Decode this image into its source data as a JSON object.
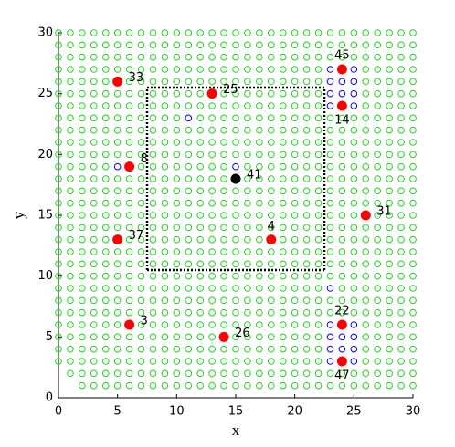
{
  "chart_data": {
    "type": "scatter",
    "xlabel": "x",
    "ylabel": "y",
    "xlim": [
      0,
      30
    ],
    "ylim": [
      0,
      30
    ],
    "xticks": [
      0,
      5,
      10,
      15,
      20,
      25,
      30
    ],
    "yticks": [
      0,
      5,
      10,
      15,
      20,
      25,
      30
    ],
    "grid": {
      "color": "#1ed41e",
      "rows": [
        {
          "y": 30,
          "x": [
            0,
            1,
            2,
            3,
            4,
            5,
            6,
            7,
            8,
            9,
            10,
            11,
            12,
            13,
            14,
            15,
            16,
            17,
            18,
            19,
            20,
            21,
            22,
            23,
            24,
            25,
            26,
            27,
            28,
            29,
            30
          ]
        },
        {
          "y": 29,
          "x": [
            0,
            1,
            2,
            3,
            4,
            5,
            6,
            7,
            8,
            9,
            10,
            11,
            12,
            13,
            14,
            15,
            16,
            17,
            18,
            19,
            20,
            21,
            22,
            23,
            24,
            25,
            26,
            27,
            28,
            29,
            30
          ]
        },
        {
          "y": 28,
          "x": [
            0,
            1,
            2,
            3,
            4,
            5,
            6,
            7,
            8,
            9,
            10,
            11,
            12,
            13,
            14,
            15,
            16,
            17,
            18,
            19,
            20,
            21,
            22,
            23,
            24,
            25,
            26,
            27,
            28,
            29,
            30
          ]
        },
        {
          "y": 27,
          "x": [
            0,
            1,
            2,
            3,
            4,
            5,
            6,
            7,
            8,
            9,
            10,
            11,
            12,
            13,
            14,
            15,
            16,
            17,
            18,
            19,
            20,
            21,
            22,
            26,
            27,
            28,
            29,
            30
          ]
        },
        {
          "y": 26,
          "x": [
            0,
            1,
            2,
            3,
            4,
            6,
            7,
            8,
            9,
            10,
            11,
            12,
            13,
            14,
            15,
            16,
            17,
            18,
            19,
            20,
            21,
            22,
            26,
            27,
            28,
            29,
            30
          ]
        },
        {
          "y": 25,
          "x": [
            0,
            1,
            2,
            3,
            4,
            5,
            6,
            7,
            8,
            9,
            10,
            11,
            12,
            14,
            15,
            16,
            17,
            18,
            19,
            20,
            21,
            22,
            26,
            27,
            28,
            29,
            30
          ]
        },
        {
          "y": 24,
          "x": [
            0,
            1,
            2,
            3,
            4,
            5,
            6,
            7,
            8,
            9,
            10,
            11,
            12,
            13,
            14,
            15,
            16,
            17,
            18,
            19,
            20,
            21,
            22,
            26,
            27,
            28,
            29,
            30
          ]
        },
        {
          "y": 23,
          "x": [
            0,
            1,
            2,
            3,
            4,
            5,
            6,
            7,
            8,
            9,
            10,
            12,
            13,
            14,
            15,
            16,
            17,
            18,
            19,
            20,
            21,
            22,
            23,
            24,
            25,
            26,
            27,
            28,
            29,
            30
          ]
        },
        {
          "y": 22,
          "x": [
            0,
            1,
            2,
            3,
            4,
            5,
            6,
            7,
            8,
            9,
            10,
            11,
            12,
            13,
            14,
            15,
            16,
            17,
            18,
            19,
            20,
            21,
            22,
            23,
            24,
            25,
            26,
            27,
            28,
            29,
            30
          ]
        },
        {
          "y": 21,
          "x": [
            0,
            1,
            2,
            3,
            4,
            5,
            6,
            7,
            8,
            9,
            10,
            11,
            12,
            13,
            14,
            15,
            16,
            17,
            18,
            19,
            20,
            21,
            22,
            23,
            24,
            25,
            26,
            27,
            28,
            29,
            30
          ]
        },
        {
          "y": 20,
          "x": [
            0,
            1,
            2,
            3,
            4,
            5,
            6,
            7,
            8,
            9,
            10,
            11,
            12,
            13,
            14,
            15,
            16,
            17,
            18,
            19,
            20,
            21,
            22,
            23,
            24,
            25,
            26,
            27,
            28,
            29,
            30
          ]
        },
        {
          "y": 19,
          "x": [
            0,
            1,
            2,
            3,
            4,
            7,
            8,
            9,
            10,
            11,
            12,
            13,
            14,
            16,
            17,
            18,
            19,
            20,
            21,
            22,
            23,
            24,
            25,
            26,
            27,
            28,
            29,
            30
          ]
        },
        {
          "y": 18,
          "x": [
            0,
            1,
            2,
            3,
            4,
            5,
            6,
            7,
            8,
            9,
            10,
            11,
            12,
            13,
            14,
            16,
            17,
            18,
            19,
            20,
            21,
            22,
            23,
            24,
            25,
            26,
            27,
            28,
            29,
            30
          ]
        },
        {
          "y": 17,
          "x": [
            0,
            1,
            2,
            3,
            4,
            5,
            6,
            7,
            8,
            9,
            10,
            11,
            12,
            13,
            14,
            15,
            16,
            17,
            18,
            19,
            20,
            21,
            22,
            23,
            24,
            25,
            26,
            27,
            28,
            29,
            30
          ]
        },
        {
          "y": 16,
          "x": [
            0,
            1,
            2,
            3,
            4,
            5,
            6,
            7,
            8,
            9,
            10,
            11,
            12,
            13,
            14,
            15,
            16,
            17,
            18,
            19,
            20,
            21,
            22,
            23,
            24,
            25,
            26,
            27,
            28,
            29,
            30
          ]
        },
        {
          "y": 15,
          "x": [
            0,
            1,
            2,
            3,
            4,
            5,
            6,
            7,
            8,
            9,
            10,
            11,
            12,
            13,
            14,
            15,
            16,
            17,
            18,
            19,
            20,
            21,
            22,
            23,
            24,
            25,
            27,
            28,
            29,
            30
          ]
        },
        {
          "y": 14,
          "x": [
            0,
            1,
            2,
            3,
            4,
            5,
            6,
            7,
            8,
            9,
            10,
            11,
            12,
            13,
            14,
            15,
            16,
            17,
            18,
            19,
            20,
            21,
            22,
            23,
            24,
            25,
            26,
            27,
            28,
            29,
            30
          ]
        },
        {
          "y": 13,
          "x": [
            0,
            1,
            2,
            3,
            4,
            6,
            7,
            8,
            9,
            10,
            11,
            12,
            13,
            14,
            15,
            16,
            17,
            19,
            20,
            21,
            22,
            23,
            24,
            25,
            26,
            27,
            28,
            29,
            30
          ]
        },
        {
          "y": 12,
          "x": [
            0,
            1,
            2,
            3,
            4,
            5,
            6,
            7,
            8,
            9,
            10,
            11,
            12,
            13,
            14,
            15,
            16,
            17,
            18,
            19,
            20,
            21,
            22,
            23,
            24,
            25,
            26,
            27,
            28,
            29,
            30
          ]
        },
        {
          "y": 11,
          "x": [
            0,
            1,
            2,
            3,
            4,
            5,
            6,
            7,
            8,
            9,
            10,
            11,
            12,
            13,
            14,
            15,
            16,
            17,
            18,
            19,
            20,
            21,
            22,
            23,
            24,
            25,
            26,
            27,
            28,
            29,
            30
          ]
        },
        {
          "y": 10,
          "x": [
            0,
            1,
            2,
            3,
            4,
            5,
            6,
            7,
            8,
            9,
            10,
            11,
            12,
            13,
            14,
            15,
            16,
            17,
            18,
            19,
            20,
            21,
            22,
            23,
            24,
            25,
            26,
            27,
            28,
            29,
            30
          ]
        },
        {
          "y": 9,
          "x": [
            0,
            1,
            2,
            3,
            4,
            5,
            6,
            7,
            8,
            9,
            10,
            11,
            12,
            13,
            14,
            15,
            16,
            17,
            18,
            19,
            20,
            21,
            22,
            24,
            25,
            26,
            27,
            28,
            29,
            30
          ]
        },
        {
          "y": 8,
          "x": [
            0,
            1,
            2,
            3,
            4,
            5,
            6,
            7,
            8,
            9,
            10,
            11,
            12,
            13,
            14,
            15,
            16,
            17,
            18,
            19,
            20,
            21,
            22,
            23,
            24,
            25,
            26,
            27,
            28,
            29,
            30
          ]
        },
        {
          "y": 7,
          "x": [
            0,
            1,
            2,
            3,
            4,
            5,
            6,
            7,
            8,
            9,
            10,
            11,
            12,
            13,
            14,
            15,
            16,
            17,
            18,
            19,
            20,
            21,
            22,
            23,
            24,
            25,
            26,
            27,
            28,
            29,
            30
          ]
        },
        {
          "y": 6,
          "x": [
            0,
            1,
            2,
            3,
            4,
            5,
            7,
            8,
            9,
            10,
            11,
            12,
            13,
            14,
            15,
            16,
            17,
            18,
            19,
            20,
            21,
            22,
            26,
            27,
            28,
            29,
            30
          ]
        },
        {
          "y": 5,
          "x": [
            0,
            1,
            2,
            3,
            4,
            5,
            6,
            7,
            8,
            9,
            10,
            11,
            12,
            13,
            15,
            16,
            17,
            18,
            19,
            20,
            21,
            22,
            26,
            27,
            28,
            29,
            30
          ]
        },
        {
          "y": 4,
          "x": [
            0,
            1,
            2,
            3,
            4,
            5,
            6,
            7,
            8,
            9,
            10,
            11,
            12,
            13,
            14,
            15,
            16,
            17,
            18,
            19,
            20,
            21,
            22,
            26,
            27,
            28,
            29,
            30
          ]
        },
        {
          "y": 3,
          "x": [
            0,
            1,
            2,
            3,
            4,
            5,
            6,
            7,
            8,
            9,
            10,
            11,
            12,
            13,
            14,
            15,
            16,
            17,
            18,
            19,
            20,
            21,
            22,
            26,
            27,
            28,
            29,
            30
          ]
        },
        {
          "y": 2,
          "x": [
            1,
            2,
            3,
            4,
            5,
            6,
            7,
            8,
            9,
            10,
            11,
            12,
            13,
            14,
            15,
            16,
            17,
            18,
            19,
            20,
            21,
            22,
            23,
            24,
            25,
            26,
            27,
            28,
            29,
            30
          ]
        },
        {
          "y": 1,
          "x": [
            2,
            3,
            4,
            5,
            6,
            7,
            8,
            9,
            10,
            11,
            12,
            13,
            14,
            15,
            16,
            17,
            18,
            19,
            20,
            21,
            22,
            23,
            24,
            25,
            26,
            27,
            28,
            29,
            30
          ]
        }
      ]
    },
    "blue": {
      "color": "#0000ff",
      "x": [
        23,
        25,
        23,
        24,
        25,
        23,
        24,
        25,
        23,
        25,
        11,
        5,
        15,
        23,
        23,
        25,
        23,
        24,
        25,
        23,
        24,
        25,
        23,
        25
      ],
      "y": [
        27,
        27,
        26,
        26,
        26,
        25,
        25,
        25,
        24,
        24,
        23,
        19,
        19,
        9,
        6,
        6,
        5,
        5,
        5,
        4,
        4,
        4,
        3,
        3
      ]
    },
    "nodes": {
      "labels": [
        "33",
        "25",
        "45",
        "14",
        "8",
        "41",
        "31",
        "37",
        "4",
        "3",
        "26",
        "22",
        "47"
      ],
      "x": [
        5,
        13,
        24,
        24,
        6,
        15,
        26,
        5,
        18,
        6,
        14,
        24,
        24
      ],
      "y": [
        26,
        25,
        27,
        24,
        19,
        18,
        15,
        13,
        13,
        6,
        5,
        6,
        3
      ],
      "colors": [
        "#ff0000",
        "#ff0000",
        "#ff0000",
        "#ff0000",
        "#ff0000",
        "#000000",
        "#ff0000",
        "#ff0000",
        "#ff0000",
        "#ff0000",
        "#ff0000",
        "#ff0000",
        "#ff0000"
      ]
    },
    "box": {
      "x": [
        7.5,
        22.5
      ],
      "y": [
        10.5,
        25.5
      ]
    }
  }
}
